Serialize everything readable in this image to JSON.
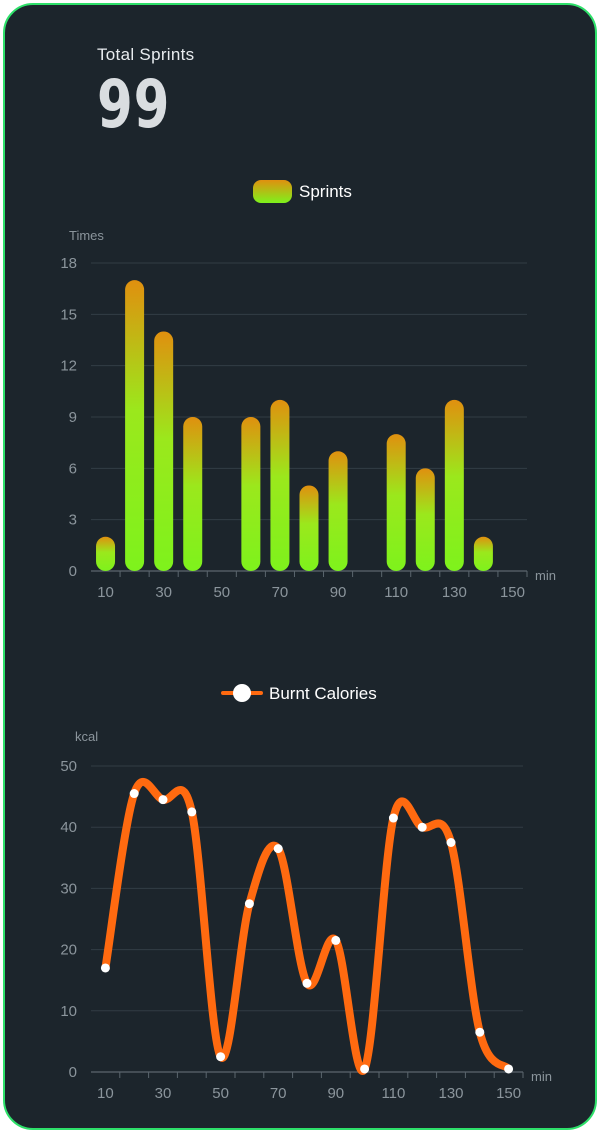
{
  "summary": {
    "label": "Total Sprints",
    "value": "99"
  },
  "colors": {
    "background": "#1c252c",
    "frame": "#2ee06a",
    "bar_top": "#e0900f",
    "bar_bottom": "#7ef21c",
    "line": "#ff6a10",
    "axis_text": "#8b959c",
    "grid": "#323d45"
  },
  "chart_data": [
    {
      "type": "bar",
      "legend": "Sprints",
      "ylabel": "Times",
      "xunit": "min",
      "ylim": [
        0,
        18
      ],
      "yticks": [
        "0",
        "3",
        "6",
        "9",
        "12",
        "15",
        "18"
      ],
      "xticks": [
        "10",
        "30",
        "50",
        "70",
        "90",
        "110",
        "130",
        "150"
      ],
      "series": [
        {
          "name": "Sprints",
          "x": [
            10,
            20,
            30,
            40,
            60,
            70,
            80,
            90,
            110,
            120,
            130,
            140
          ],
          "values": [
            2,
            17,
            14,
            9,
            9,
            10,
            5,
            7,
            8,
            6,
            10,
            2
          ]
        }
      ]
    },
    {
      "type": "line",
      "legend": "Burnt Calories",
      "ylabel": "kcal",
      "xunit": "min",
      "ylim": [
        0,
        50
      ],
      "yticks": [
        "0",
        "10",
        "20",
        "30",
        "40",
        "50"
      ],
      "xticks": [
        "10",
        "30",
        "50",
        "70",
        "90",
        "110",
        "130",
        "150"
      ],
      "series": [
        {
          "name": "Burnt Calories",
          "x": [
            10,
            20,
            30,
            40,
            50,
            60,
            70,
            80,
            90,
            100,
            110,
            120,
            130,
            140,
            150
          ],
          "values": [
            17,
            45.5,
            44.5,
            42.5,
            2.5,
            27.5,
            36.5,
            14.5,
            21.5,
            0.5,
            41.5,
            40,
            37.5,
            6.5,
            0.5
          ]
        }
      ]
    }
  ]
}
